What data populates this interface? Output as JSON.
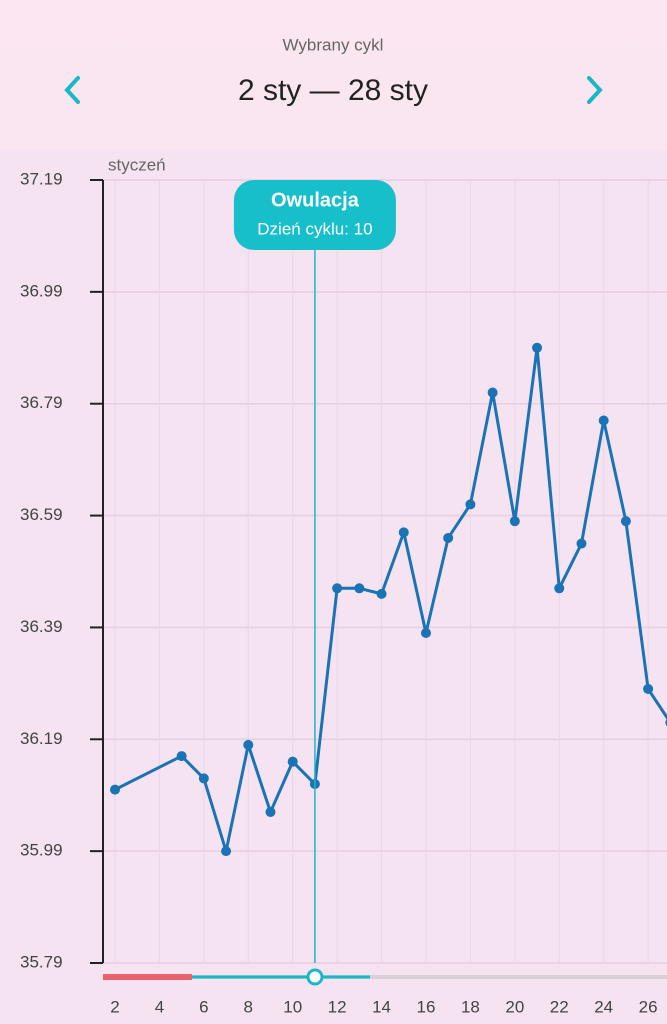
{
  "header": {
    "subtitle": "Wybrany cykl",
    "title": "2 sty — 28 sty"
  },
  "chart_data": {
    "type": "line",
    "month_label": "styczeń",
    "annotation": {
      "title": "Owulacja",
      "text": "Dzień cyklu: 10",
      "x": 11
    },
    "x": [
      2,
      5,
      6,
      7,
      8,
      9,
      10,
      11,
      12,
      13,
      14,
      15,
      16,
      17,
      18,
      19,
      20,
      21,
      22,
      23,
      24,
      25,
      26,
      27
    ],
    "series": [
      {
        "color": "#1a73b4",
        "values": [
          36.1,
          36.16,
          36.12,
          35.99,
          36.18,
          36.06,
          36.15,
          36.11,
          36.46,
          36.46,
          36.45,
          36.56,
          36.38,
          36.55,
          36.61,
          36.81,
          36.58,
          36.89,
          36.46,
          36.54,
          36.76,
          36.58,
          36.28,
          36.22
        ]
      }
    ],
    "xlim": [
      1.46,
      26.85
    ],
    "ylim": [
      35.79,
      37.19
    ],
    "xticks": [
      2,
      4,
      6,
      8,
      10,
      12,
      14,
      16,
      18,
      20,
      22,
      24,
      26
    ],
    "yticks": [
      35.79,
      35.99,
      36.19,
      36.39,
      36.59,
      36.79,
      36.99,
      37.19
    ],
    "grid": true
  }
}
